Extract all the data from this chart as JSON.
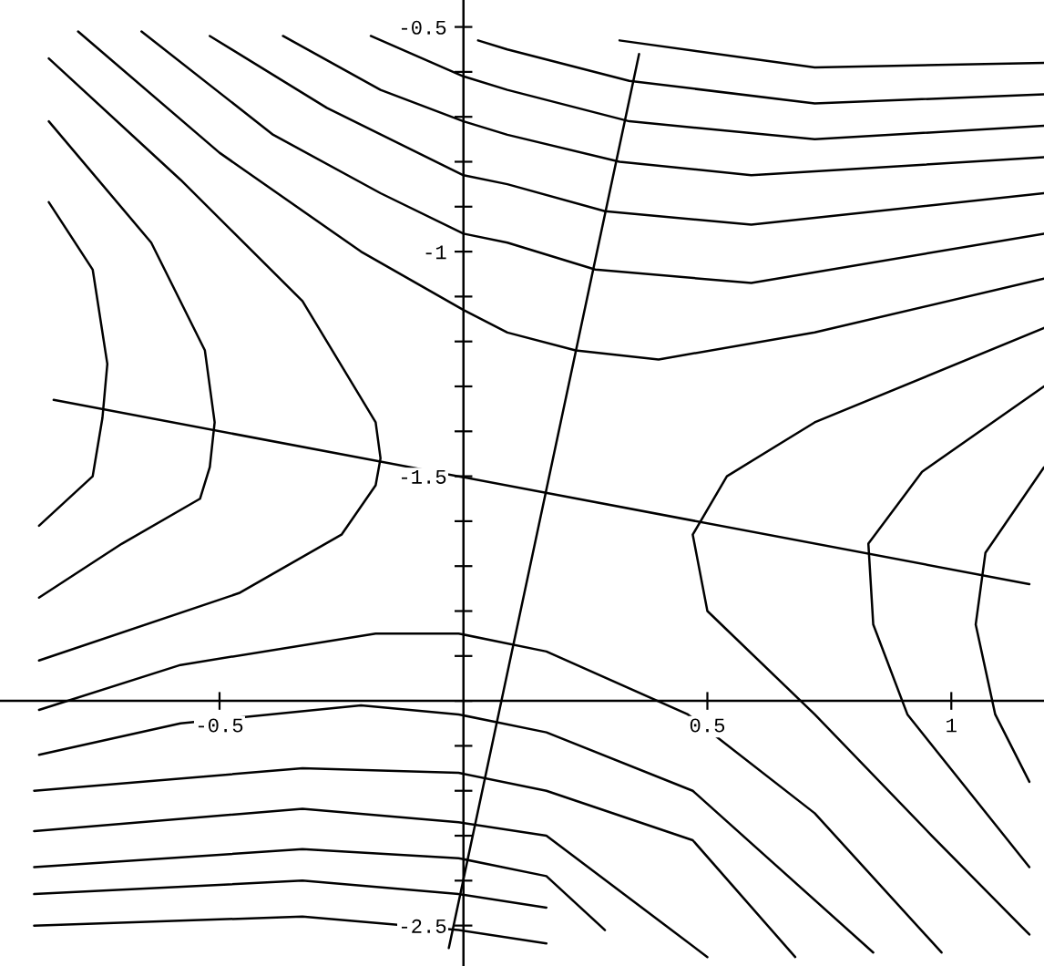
{
  "chart_data": {
    "type": "line",
    "xlim": [
      -0.95,
      1.19
    ],
    "ylim": [
      -2.59,
      -0.44
    ],
    "xticks": [
      -0.5,
      0.5,
      1
    ],
    "yticks": [
      -2.5,
      {
        "value": -2.4,
        "label": null
      },
      {
        "value": -2.3,
        "label": null
      },
      {
        "value": -2.2,
        "label": null
      },
      {
        "value": -2.1,
        "label": null
      },
      {
        "value": -2,
        "label": null
      },
      {
        "value": -1.9,
        "label": null
      },
      {
        "value": -1.8,
        "label": null
      },
      {
        "value": -1.7,
        "label": null
      },
      {
        "value": -1.6,
        "label": null
      },
      -1.5,
      {
        "value": -1.4,
        "label": null
      },
      {
        "value": -1.3,
        "label": null
      },
      {
        "value": -1.2,
        "label": null
      },
      {
        "value": -1.1,
        "label": null
      },
      -1,
      {
        "value": -0.9,
        "label": null
      },
      {
        "value": -0.8,
        "label": null
      },
      {
        "value": -0.7,
        "label": null
      },
      {
        "value": -0.6,
        "label": null
      },
      -0.5
    ],
    "series": [
      {
        "color": "#000000",
        "x": [
          0.32,
          0.72,
          1.19
        ],
        "values": [
          -0.53,
          -0.59,
          -0.58
        ]
      },
      {
        "color": "#000000",
        "x": [
          0.03,
          0.09,
          0.34,
          0.72,
          1.19
        ],
        "values": [
          -0.53,
          -0.55,
          -0.62,
          -0.67,
          -0.65
        ]
      },
      {
        "color": "#000000",
        "x": [
          -0.19,
          0,
          0.09,
          0.34,
          0.72,
          1.19
        ],
        "values": [
          -0.52,
          -0.61,
          -0.64,
          -0.71,
          -0.75,
          -0.72
        ]
      },
      {
        "color": "#000000",
        "x": [
          -0.37,
          -0.17,
          0,
          0.09,
          0.32,
          0.59,
          1.19
        ],
        "values": [
          -0.52,
          -0.64,
          -0.71,
          -0.74,
          -0.8,
          -0.83,
          -0.79
        ]
      },
      {
        "color": "#000000",
        "x": [
          -0.52,
          -0.28,
          0,
          0.09,
          0.29,
          0.59,
          1.19
        ],
        "values": [
          -0.52,
          -0.68,
          -0.83,
          -0.85,
          -0.91,
          -0.94,
          -0.87
        ]
      },
      {
        "color": "#000000",
        "x": [
          -0.66,
          -0.39,
          -0.17,
          0,
          0.09,
          0.27,
          0.59,
          1.19
        ],
        "values": [
          -0.51,
          -0.74,
          -0.87,
          -0.96,
          -0.98,
          -1.04,
          -1.07,
          -0.96
        ]
      },
      {
        "color": "#000000",
        "x": [
          -0.79,
          -0.5,
          -0.21,
          0,
          0.09,
          0.23,
          0.4,
          0.72,
          1.19
        ],
        "values": [
          -0.51,
          -0.78,
          -1.0,
          -1.13,
          -1.18,
          -1.22,
          -1.24,
          -1.18,
          -1.06
        ]
      },
      {
        "color": "#000000",
        "x": [
          -0.85,
          -0.58,
          -0.33,
          -0.18,
          -0.17,
          -0.18,
          -0.25,
          -0.46,
          -0.87
        ],
        "values": [
          -0.57,
          -0.84,
          -1.11,
          -1.38,
          -1.46,
          -1.52,
          -1.63,
          -1.76,
          -1.91
        ]
      },
      {
        "color": "#000000",
        "x": [
          -0.85,
          -0.64,
          -0.53,
          -0.51,
          -0.52,
          -0.54,
          -0.7,
          -0.87
        ],
        "values": [
          -0.71,
          -0.98,
          -1.22,
          -1.38,
          -1.48,
          -1.55,
          -1.65,
          -1.77
        ]
      },
      {
        "color": "#000000",
        "x": [
          -0.85,
          -0.76,
          -0.73,
          -0.74,
          -0.76,
          -0.87
        ],
        "values": [
          -0.89,
          -1.04,
          -1.25,
          -1.37,
          -1.5,
          -1.61
        ]
      },
      {
        "color": "#000000",
        "x": [
          -0.87,
          -0.58,
          -0.18,
          -0.01,
          0.17,
          0.46,
          0.72,
          0.98
        ],
        "values": [
          -2.02,
          -1.92,
          -1.85,
          -1.85,
          -1.89,
          -2.03,
          -2.25,
          -2.56
        ]
      },
      {
        "color": "#000000",
        "x": [
          -0.87,
          -0.58,
          -0.21,
          -0.01,
          0.17,
          0.47,
          0.84
        ],
        "values": [
          -2.12,
          -2.05,
          -2.01,
          -2.03,
          -2.07,
          -2.2,
          -2.56
        ]
      },
      {
        "color": "#000000",
        "x": [
          -0.88,
          -0.33,
          -0.01,
          0.17,
          0.47,
          0.68
        ],
        "values": [
          -2.2,
          -2.15,
          -2.16,
          -2.2,
          -2.31,
          -2.57
        ]
      },
      {
        "color": "#000000",
        "x": [
          -0.88,
          -0.33,
          -0.01,
          0.17,
          0.5
        ],
        "values": [
          -2.29,
          -2.24,
          -2.27,
          -2.3,
          -2.57
        ]
      },
      {
        "color": "#000000",
        "x": [
          -0.88,
          -0.33,
          -0.01,
          0.17,
          0.29
        ],
        "values": [
          -2.37,
          -2.33,
          -2.35,
          -2.39,
          -2.51
        ]
      },
      {
        "color": "#000000",
        "x": [
          -0.88,
          -0.33,
          -0.01,
          0.17
        ],
        "values": [
          -2.43,
          -2.4,
          -2.43,
          -2.46
        ]
      },
      {
        "color": "#000000",
        "x": [
          -0.88,
          -0.33,
          -0.01,
          0.17
        ],
        "values": [
          -2.5,
          -2.48,
          -2.51,
          -2.54
        ]
      },
      {
        "color": "#000000",
        "x": [
          1.19,
          0.72,
          0.54,
          0.47,
          0.5,
          0.72,
          0.96,
          1.16
        ],
        "values": [
          -1.17,
          -1.38,
          -1.5,
          -1.63,
          -1.8,
          -2.03,
          -2.3,
          -2.52
        ]
      },
      {
        "color": "#000000",
        "x": [
          1.19,
          0.94,
          0.83,
          0.84,
          0.91,
          1.16
        ],
        "values": [
          -1.3,
          -1.49,
          -1.65,
          -1.83,
          -2.03,
          -2.37
        ]
      },
      {
        "color": "#000000",
        "x": [
          1.19,
          1.07,
          1.05,
          1.09,
          1.16
        ],
        "values": [
          -1.48,
          -1.67,
          -1.83,
          -2.03,
          -2.18
        ]
      },
      {
        "color": "#000000",
        "x": [
          -0.03,
          0.36
        ],
        "values": [
          -2.55,
          -0.56
        ]
      },
      {
        "color": "#000000",
        "x": [
          -0.84,
          1.16
        ],
        "values": [
          -1.33,
          -1.74
        ]
      }
    ]
  }
}
